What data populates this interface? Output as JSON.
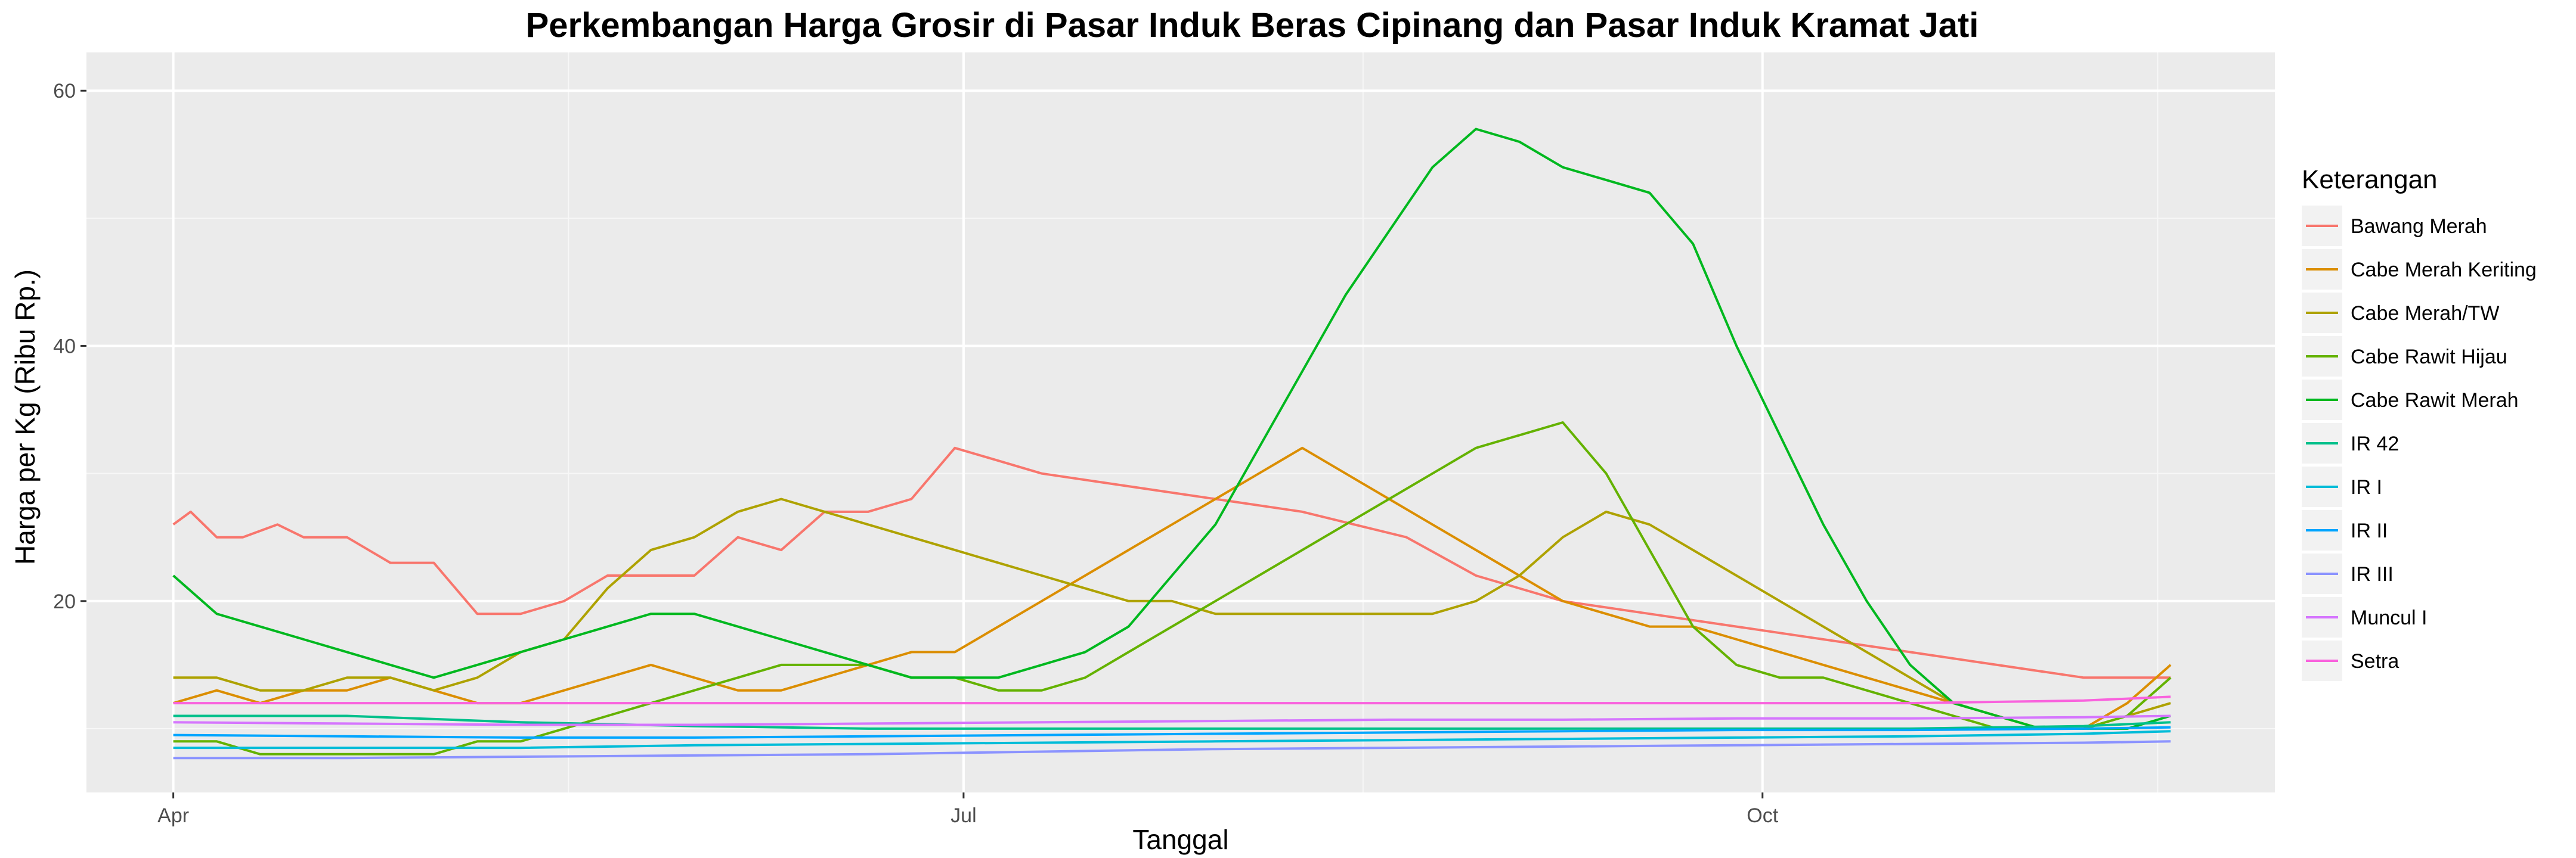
{
  "chart_data": {
    "type": "line",
    "title": "Perkembangan Harga Grosir di Pasar Induk Beras Cipinang dan Pasar Induk Kramat Jati",
    "xlabel": "Tanggal",
    "ylabel": "Harga per Kg (Ribu Rp.)",
    "x_ticks": [
      {
        "label": "Apr",
        "value": 0
      },
      {
        "label": "Jul",
        "value": 91
      },
      {
        "label": "Oct",
        "value": 183
      }
    ],
    "y_ticks": [
      20,
      40,
      60
    ],
    "xlim": [
      -10,
      242
    ],
    "ylim": [
      5,
      63
    ],
    "grid": true,
    "legend": {
      "title": "Keterangan",
      "position": "right"
    },
    "series": [
      {
        "name": "Bawang Merah",
        "color": "#F8766D",
        "x": [
          0,
          2,
          5,
          8,
          12,
          15,
          20,
          25,
          30,
          35,
          40,
          45,
          50,
          55,
          60,
          65,
          70,
          75,
          80,
          85,
          90,
          95,
          100,
          110,
          130,
          142,
          150,
          160,
          170,
          180,
          190,
          200,
          210,
          220,
          230
        ],
        "y": [
          26,
          27,
          25,
          25,
          26,
          25,
          25,
          23,
          23,
          19,
          19,
          20,
          22,
          22,
          22,
          25,
          24,
          27,
          27,
          28,
          32,
          31,
          30,
          29,
          27,
          25,
          22,
          20,
          19,
          18,
          17,
          16,
          15,
          14,
          14
        ]
      },
      {
        "name": "Cabe Merah Keriting",
        "color": "#DB8E00",
        "x": [
          0,
          5,
          10,
          15,
          20,
          25,
          30,
          35,
          40,
          45,
          50,
          55,
          60,
          65,
          70,
          75,
          80,
          85,
          90,
          95,
          100,
          105,
          110,
          115,
          120,
          125,
          130,
          135,
          140,
          145,
          150,
          155,
          160,
          165,
          170,
          175,
          180,
          185,
          190,
          195,
          200,
          205,
          210,
          215,
          220,
          225,
          230
        ],
        "y": [
          12,
          13,
          12,
          13,
          13,
          14,
          13,
          12,
          12,
          13,
          14,
          15,
          14,
          13,
          13,
          14,
          15,
          16,
          16,
          18,
          20,
          22,
          24,
          26,
          28,
          30,
          32,
          30,
          28,
          26,
          24,
          22,
          20,
          19,
          18,
          18,
          17,
          16,
          15,
          14,
          13,
          12,
          11,
          10,
          10,
          12,
          15
        ]
      },
      {
        "name": "Cabe Merah/TW",
        "color": "#AEA200",
        "x": [
          0,
          5,
          10,
          15,
          20,
          25,
          30,
          35,
          40,
          45,
          50,
          55,
          60,
          65,
          70,
          75,
          80,
          85,
          90,
          95,
          100,
          105,
          110,
          115,
          120,
          125,
          130,
          135,
          140,
          145,
          150,
          155,
          160,
          165,
          170,
          175,
          180,
          185,
          190,
          195,
          200,
          205,
          210,
          215,
          220,
          225,
          230
        ],
        "y": [
          14,
          14,
          13,
          13,
          14,
          14,
          13,
          14,
          16,
          17,
          21,
          24,
          25,
          27,
          28,
          27,
          26,
          25,
          24,
          23,
          22,
          21,
          20,
          20,
          19,
          19,
          19,
          19,
          19,
          19,
          20,
          22,
          25,
          27,
          26,
          24,
          22,
          20,
          18,
          16,
          14,
          12,
          11,
          10,
          10,
          11,
          12
        ]
      },
      {
        "name": "Cabe Rawit Hijau",
        "color": "#64B200",
        "x": [
          0,
          5,
          10,
          15,
          20,
          25,
          30,
          35,
          40,
          45,
          50,
          55,
          60,
          65,
          70,
          75,
          80,
          85,
          90,
          95,
          100,
          105,
          110,
          115,
          120,
          125,
          130,
          135,
          140,
          145,
          150,
          155,
          160,
          165,
          170,
          175,
          180,
          185,
          190,
          195,
          200,
          205,
          210,
          215,
          220,
          225,
          230
        ],
        "y": [
          9,
          9,
          8,
          8,
          8,
          8,
          8,
          9,
          9,
          10,
          11,
          12,
          13,
          14,
          15,
          15,
          15,
          14,
          14,
          13,
          13,
          14,
          16,
          18,
          20,
          22,
          24,
          26,
          28,
          30,
          32,
          33,
          34,
          30,
          24,
          18,
          15,
          14,
          14,
          13,
          12,
          11,
          10,
          10,
          10,
          11,
          14
        ]
      },
      {
        "name": "Cabe Rawit Merah",
        "color": "#00B81F",
        "x": [
          0,
          5,
          10,
          15,
          20,
          25,
          30,
          35,
          40,
          45,
          50,
          55,
          60,
          65,
          70,
          75,
          80,
          85,
          90,
          95,
          100,
          105,
          110,
          115,
          120,
          125,
          130,
          135,
          140,
          145,
          150,
          155,
          160,
          165,
          170,
          175,
          180,
          185,
          190,
          195,
          200,
          205,
          210,
          215,
          220,
          225,
          230
        ],
        "y": [
          22,
          19,
          18,
          17,
          16,
          15,
          14,
          15,
          16,
          17,
          18,
          19,
          19,
          18,
          17,
          16,
          15,
          14,
          14,
          14,
          15,
          16,
          18,
          22,
          26,
          32,
          38,
          44,
          49,
          54,
          57,
          56,
          54,
          53,
          52,
          48,
          40,
          33,
          26,
          20,
          15,
          12,
          11,
          10,
          10,
          10,
          11
        ]
      },
      {
        "name": "IR 42",
        "color": "#00C08B",
        "x": [
          0,
          20,
          40,
          60,
          80,
          100,
          120,
          140,
          160,
          180,
          200,
          220,
          230
        ],
        "y": [
          11.0,
          11.0,
          10.5,
          10.2,
          10.0,
          10.0,
          10.0,
          10.0,
          10.0,
          10.0,
          10.0,
          10.2,
          10.5
        ]
      },
      {
        "name": "IR I",
        "color": "#00BCD8",
        "x": [
          0,
          20,
          40,
          60,
          80,
          100,
          120,
          140,
          160,
          180,
          200,
          220,
          230
        ],
        "y": [
          8.5,
          8.5,
          8.5,
          8.7,
          8.8,
          8.9,
          9.0,
          9.1,
          9.2,
          9.3,
          9.4,
          9.6,
          9.8
        ]
      },
      {
        "name": "IR II",
        "color": "#00A5FF",
        "x": [
          0,
          20,
          40,
          60,
          80,
          100,
          120,
          140,
          160,
          180,
          200,
          220,
          230
        ],
        "y": [
          9.5,
          9.4,
          9.3,
          9.3,
          9.4,
          9.5,
          9.6,
          9.7,
          9.8,
          9.9,
          9.9,
          10.0,
          10.1
        ]
      },
      {
        "name": "IR III",
        "color": "#8B93FF",
        "x": [
          0,
          20,
          40,
          60,
          80,
          100,
          120,
          140,
          160,
          180,
          200,
          220,
          230
        ],
        "y": [
          7.7,
          7.7,
          7.8,
          7.9,
          8.0,
          8.2,
          8.4,
          8.5,
          8.6,
          8.7,
          8.8,
          8.9,
          9.0
        ]
      },
      {
        "name": "Muncul I",
        "color": "#D575FE",
        "x": [
          0,
          20,
          40,
          60,
          80,
          100,
          120,
          140,
          160,
          180,
          200,
          220,
          230
        ],
        "y": [
          10.5,
          10.4,
          10.3,
          10.3,
          10.4,
          10.5,
          10.6,
          10.7,
          10.7,
          10.8,
          10.8,
          10.9,
          11.0
        ]
      },
      {
        "name": "Setra",
        "color": "#F962DD",
        "x": [
          0,
          20,
          40,
          60,
          80,
          100,
          120,
          140,
          160,
          180,
          200,
          220,
          230
        ],
        "y": [
          12.0,
          12.0,
          12.0,
          12.0,
          12.0,
          12.0,
          12.0,
          12.0,
          12.0,
          12.0,
          12.0,
          12.2,
          12.5
        ]
      }
    ]
  }
}
